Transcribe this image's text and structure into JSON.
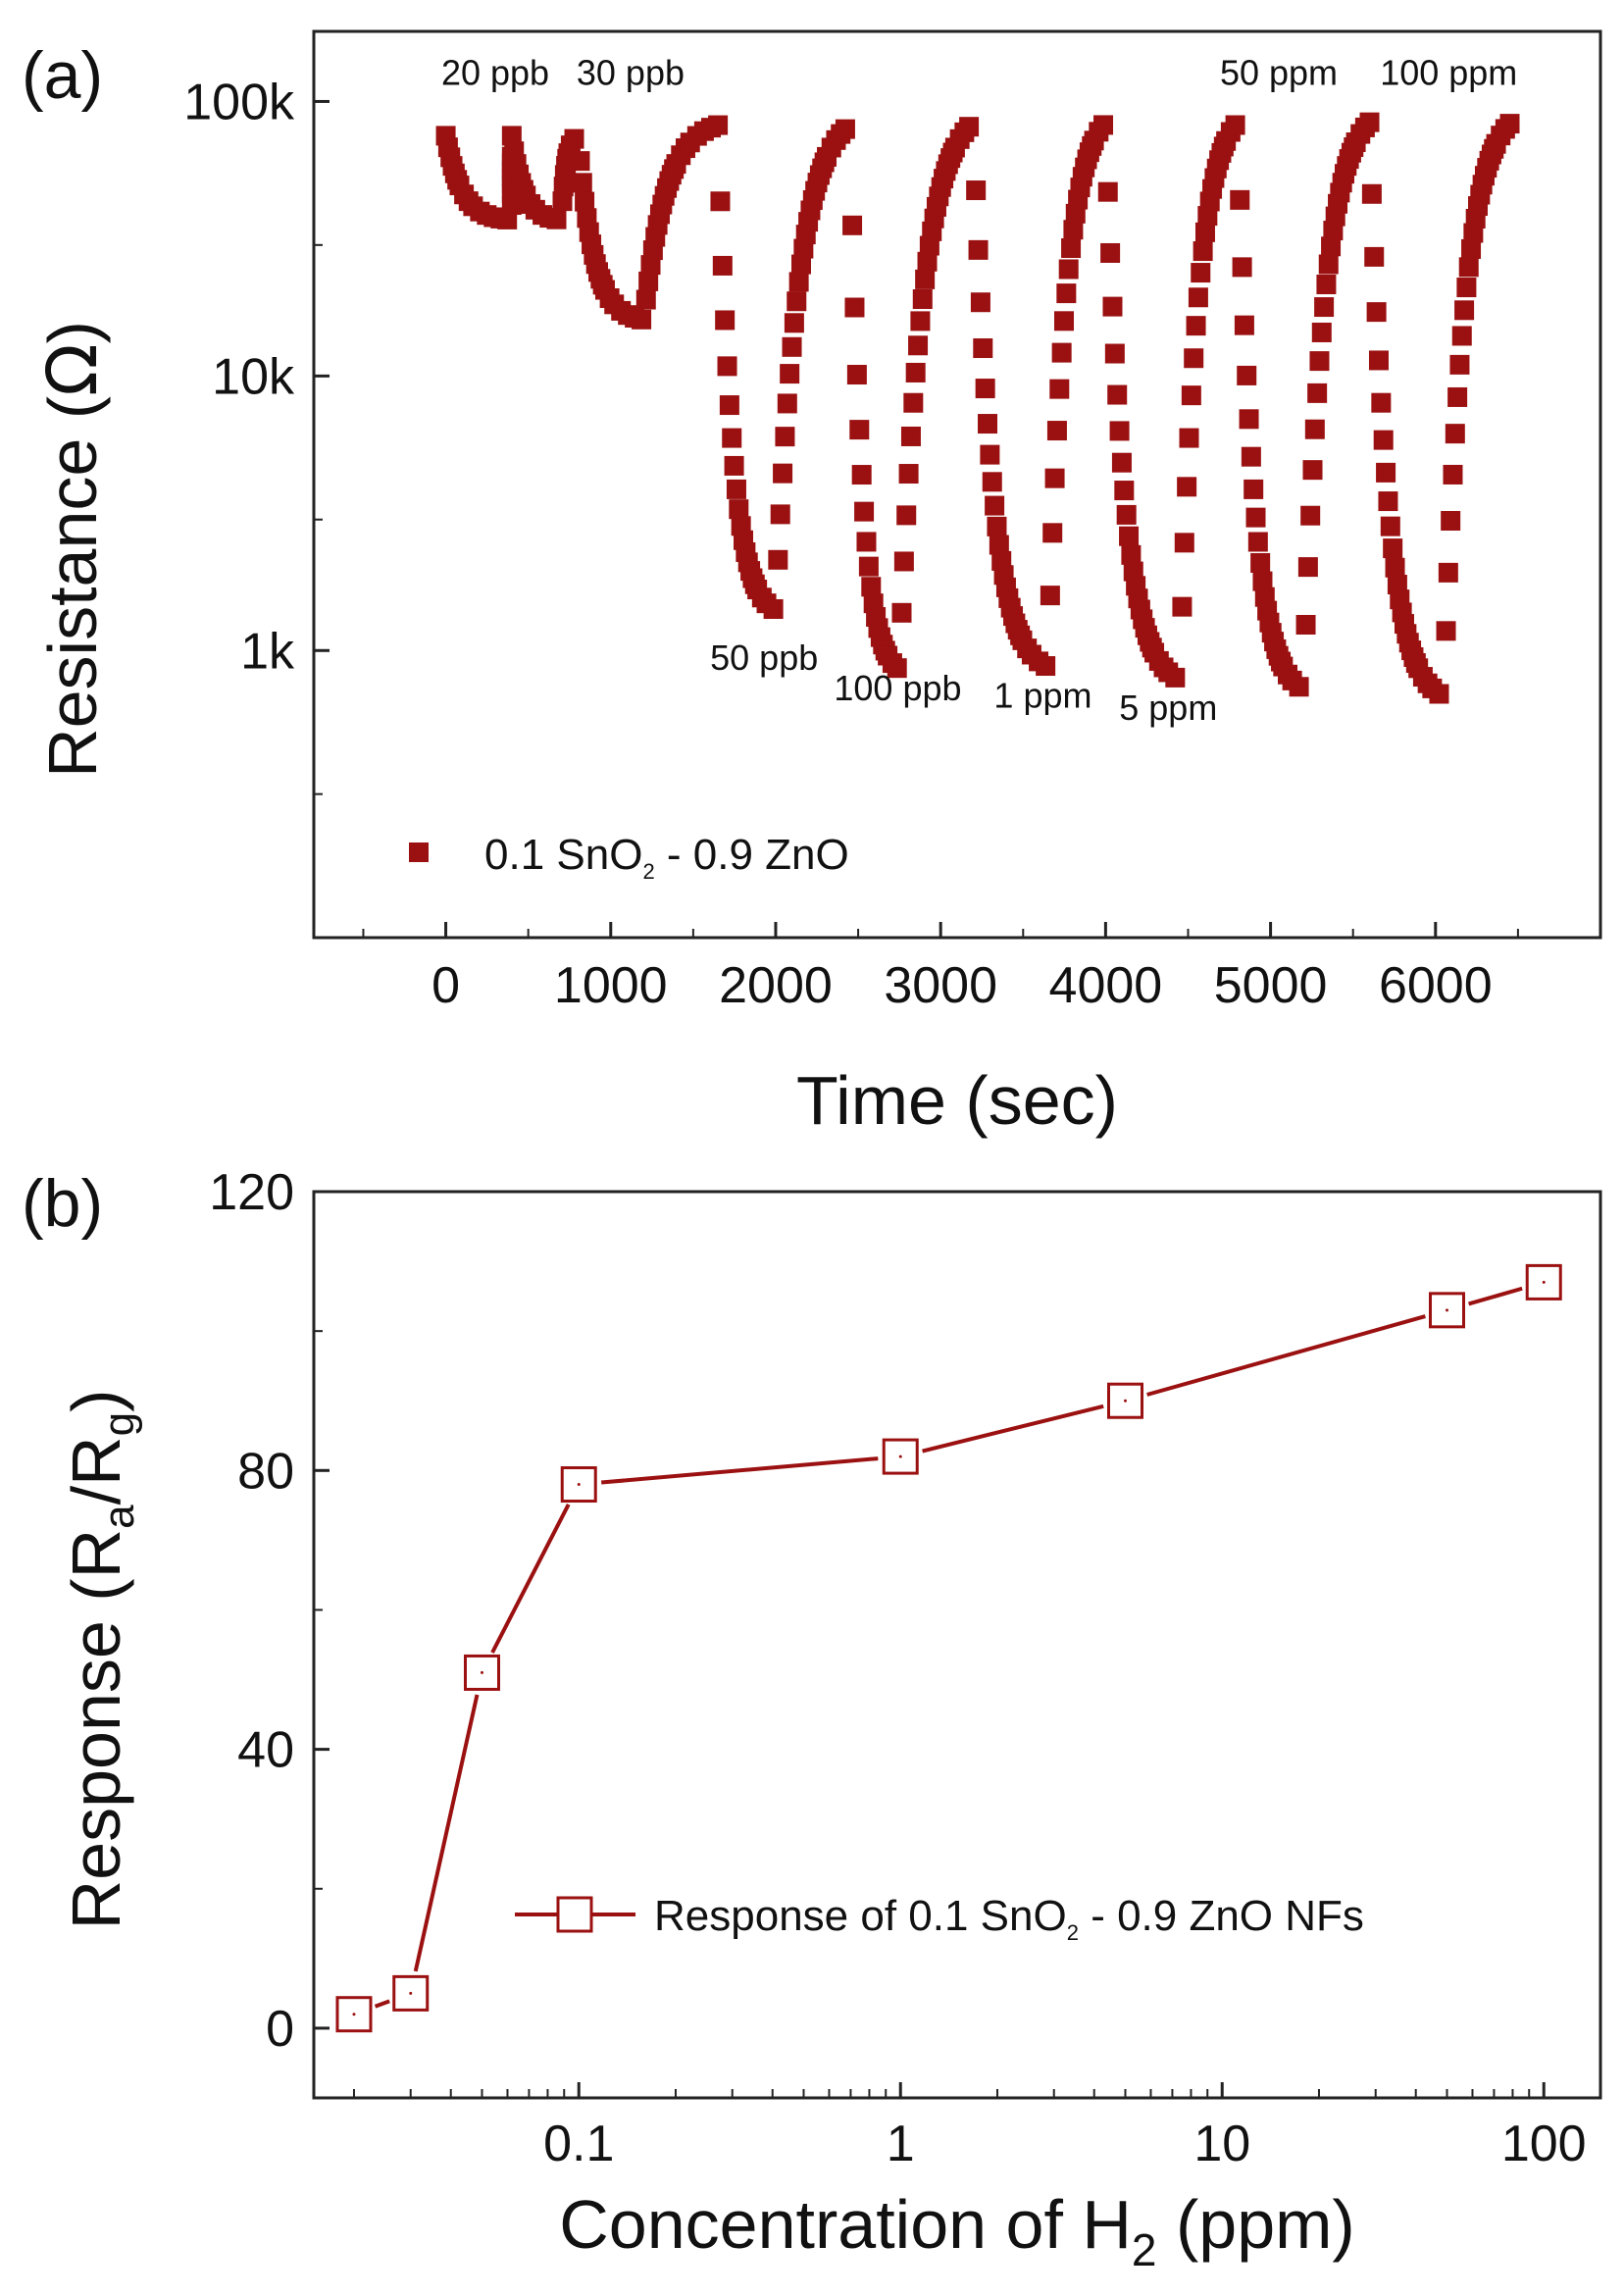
{
  "chart_data": [
    {
      "type": "scatter",
      "panel_label": "(a)",
      "xlabel": "Time (sec)",
      "ylabel": "Resistance (Ω)",
      "x_ticks": [
        0,
        1000,
        2000,
        3000,
        4000,
        5000,
        6000
      ],
      "x_tick_labels": [
        "0",
        "1000",
        "2000",
        "3000",
        "4000",
        "5000",
        "6000"
      ],
      "xlim": [
        -800,
        7000
      ],
      "y_scale": "log",
      "y_ticks": [
        1000,
        10000,
        100000
      ],
      "y_tick_labels": [
        "1k",
        "10k",
        "100k"
      ],
      "ylim": [
        90,
        180000
      ],
      "grid": false,
      "legend_position": "bottom-left",
      "legend_label": "0.1 SnO2 - 0.9 ZnO",
      "marker_color": "#9B1111",
      "cycles": [
        {
          "start": 0,
          "in_air": 75000,
          "exposed": 37000,
          "gas_off": 400,
          "recovered": 65000,
          "end": 400
        },
        {
          "start": 400,
          "in_air": 75000,
          "exposed": 37000,
          "gas_off": 700,
          "recovered": 75000,
          "end": 800
        },
        {
          "start": 800,
          "in_air": 75000,
          "exposed": 16000,
          "gas_off": 1200,
          "recovered": 82000,
          "end": 1650
        },
        {
          "start": 1650,
          "in_air": 82000,
          "exposed": 1400,
          "gas_off": 2000,
          "recovered": 82000,
          "end": 2450
        },
        {
          "start": 2450,
          "in_air": 82000,
          "exposed": 850,
          "gas_off": 2750,
          "recovered": 84000,
          "end": 3200
        },
        {
          "start": 3200,
          "in_air": 84000,
          "exposed": 870,
          "gas_off": 3650,
          "recovered": 84000,
          "end": 4000
        },
        {
          "start": 4000,
          "in_air": 84000,
          "exposed": 780,
          "gas_off": 4450,
          "recovered": 84000,
          "end": 4800
        },
        {
          "start": 4800,
          "in_air": 84000,
          "exposed": 720,
          "gas_off": 5200,
          "recovered": 84000,
          "end": 5600
        },
        {
          "start": 5600,
          "in_air": 84000,
          "exposed": 680,
          "gas_off": 6050,
          "recovered": 83000,
          "end": 6450
        }
      ],
      "annotations": [
        {
          "text": "20 ppb",
          "x": 300,
          "y": 115000
        },
        {
          "text": "30 ppb",
          "x": 1120,
          "y": 115000
        },
        {
          "text": "50 ppb",
          "x": 1930,
          "y": 850
        },
        {
          "text": "100 ppb",
          "x": 2740,
          "y": 660
        },
        {
          "text": "1 ppm",
          "x": 3620,
          "y": 620
        },
        {
          "text": "5 ppm",
          "x": 4380,
          "y": 560
        },
        {
          "text": "50 ppm",
          "x": 5050,
          "y": 115000
        },
        {
          "text": "100 ppm",
          "x": 6080,
          "y": 115000
        }
      ]
    },
    {
      "type": "line",
      "panel_label": "(b)",
      "xlabel": "Concentration of H2 (ppm)",
      "ylabel": "Response (Ra/Rg)",
      "x_scale": "log",
      "x_ticks": [
        0.1,
        1,
        10,
        100
      ],
      "x_tick_labels": [
        "0.1",
        "1",
        "10",
        "100"
      ],
      "xlim": [
        0.015,
        150
      ],
      "y_ticks": [
        0,
        40,
        80,
        120
      ],
      "y_tick_labels": [
        "0",
        "40",
        "80",
        "120"
      ],
      "ylim": [
        -10,
        120
      ],
      "grid": false,
      "legend_position": "bottom-right",
      "series": [
        {
          "name": "Response of 0.1 SnO2 - 0.9 ZnO NFs",
          "color": "#9B1111",
          "marker": "open-square",
          "x": [
            0.02,
            0.03,
            0.05,
            0.1,
            1,
            5,
            50,
            100
          ],
          "y": [
            2,
            5,
            51,
            78,
            82,
            90,
            103,
            107
          ]
        }
      ]
    }
  ]
}
